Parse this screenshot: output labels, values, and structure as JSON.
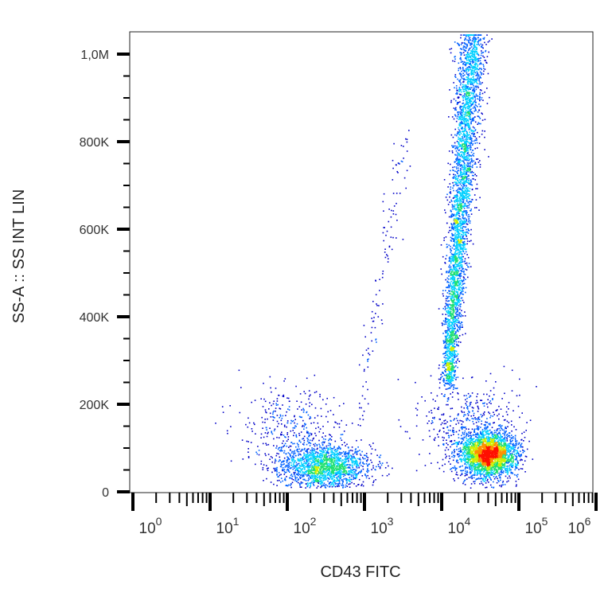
{
  "chart_data": {
    "type": "scatter",
    "title": "",
    "xlabel": "CD43 FITC",
    "ylabel": "SS-A :: SS INT LIN",
    "x_scale": "log",
    "y_scale": "linear",
    "xlim": [
      1,
      1000000
    ],
    "ylim": [
      0,
      1050000
    ],
    "x_ticks": [
      {
        "base": "10",
        "exp": "0",
        "value": 1
      },
      {
        "base": "10",
        "exp": "1",
        "value": 10
      },
      {
        "base": "10",
        "exp": "2",
        "value": 100
      },
      {
        "base": "10",
        "exp": "3",
        "value": 1000
      },
      {
        "base": "10",
        "exp": "4",
        "value": 10000
      },
      {
        "base": "10",
        "exp": "5",
        "value": 100000
      },
      {
        "base": "10",
        "exp": "6",
        "value": 1000000
      }
    ],
    "y_ticks": [
      {
        "label": "0",
        "value": 0
      },
      {
        "label": "200K",
        "value": 200000
      },
      {
        "label": "400K",
        "value": 400000
      },
      {
        "label": "600K",
        "value": 600000
      },
      {
        "label": "800K",
        "value": 800000
      },
      {
        "label": "1,0M",
        "value": 1000000
      }
    ],
    "grid": false,
    "color_mode": "density (blue low → red high)",
    "colors": [
      "#0000c8",
      "#0060ff",
      "#00d0ff",
      "#20e070",
      "#d0f000",
      "#ff9000",
      "#ff1000"
    ],
    "populations": [
      {
        "x_center": 300,
        "y_center": 60000,
        "x_log_sd": 0.3,
        "y_sd": 25000,
        "n": 1700
      },
      {
        "x_center": 120,
        "y_center": 150000,
        "x_log_sd": 0.35,
        "y_sd": 45000,
        "n": 350
      },
      {
        "x_center": 40000,
        "y_center": 85000,
        "x_log_sd": 0.18,
        "y_sd": 25000,
        "n": 2600
      },
      {
        "x_center": 25000,
        "y_center": 150000,
        "x_log_sd": 0.3,
        "y_sd": 50000,
        "n": 500
      },
      {
        "x_start": 12000,
        "y_start": 250000,
        "x_end": 25000,
        "y_end": 1050000,
        "x_log_sd": 0.08,
        "n": 3600
      },
      {
        "x_start": 800,
        "y_start": 150000,
        "x_end": 3500,
        "y_end": 820000,
        "x_log_sd": 0.06,
        "n": 120
      }
    ]
  }
}
